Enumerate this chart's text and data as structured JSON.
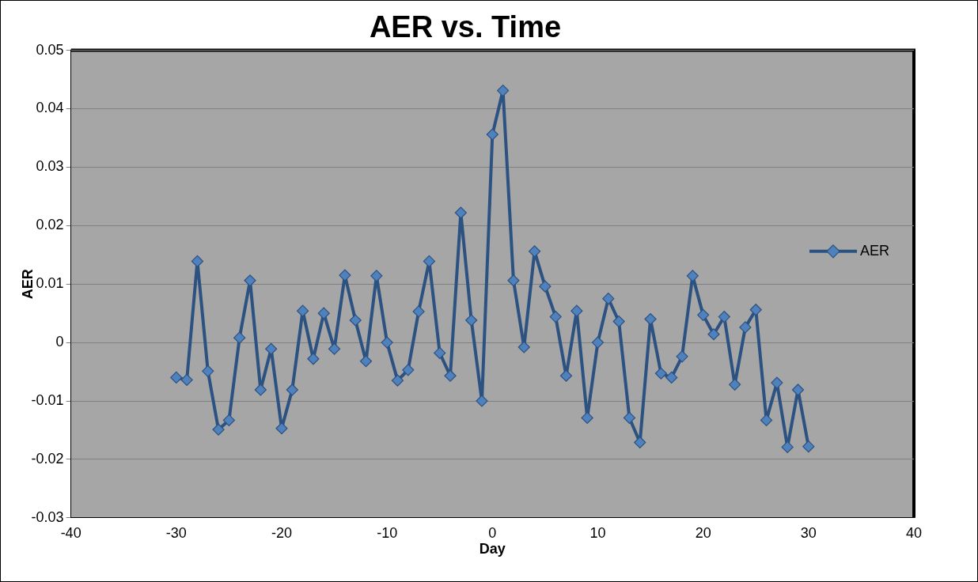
{
  "chart_data": {
    "type": "line",
    "title": "AER vs. Time",
    "xlabel": "Day",
    "ylabel": "AER",
    "x": [
      -30,
      -29,
      -28,
      -27,
      -26,
      -25,
      -24,
      -23,
      -22,
      -21,
      -20,
      -19,
      -18,
      -17,
      -16,
      -15,
      -14,
      -13,
      -12,
      -11,
      -10,
      -9,
      -8,
      -7,
      -6,
      -5,
      -4,
      -3,
      -2,
      -1,
      0,
      1,
      2,
      3,
      4,
      5,
      6,
      7,
      8,
      9,
      10,
      11,
      12,
      13,
      14,
      15,
      16,
      17,
      18,
      19,
      20,
      21,
      22,
      23,
      24,
      25,
      26,
      27,
      28,
      29,
      30
    ],
    "series": [
      {
        "name": "AER",
        "color": "#2c5282",
        "values": [
          -0.006,
          -0.0064,
          0.0139,
          -0.0049,
          -0.0149,
          -0.0133,
          0.0008,
          0.0106,
          -0.0081,
          -0.0011,
          -0.0147,
          -0.0081,
          0.0054,
          -0.0028,
          0.005,
          -0.0011,
          0.0115,
          0.0038,
          -0.0032,
          0.0114,
          0,
          -0.0065,
          -0.0047,
          0.0053,
          0.0139,
          -0.0018,
          -0.0057,
          0.0222,
          0.0038,
          -0.01,
          0.0356,
          0.0431,
          0.0106,
          -0.0008,
          0.0156,
          0.0096,
          0.0044,
          -0.0057,
          0.0054,
          -0.0129,
          0,
          0.0075,
          0.0036,
          -0.0129,
          -0.0171,
          0.004,
          -0.0053,
          -0.006,
          -0.0024,
          0.0114,
          0.0047,
          0.0014,
          0.0044,
          -0.0072,
          0.0026,
          0.0056,
          -0.0133,
          -0.0069,
          -0.0179,
          -0.0081,
          -0.0178
        ]
      }
    ],
    "xlim": [
      -40,
      40
    ],
    "xticks": [
      -40,
      -30,
      -20,
      -10,
      0,
      10,
      20,
      30,
      40
    ],
    "ylim": [
      -0.03,
      0.05
    ],
    "yticks": [
      -0.03,
      -0.02,
      -0.01,
      0,
      0.01,
      0.02,
      0.03,
      0.04,
      0.05
    ],
    "grid": "y",
    "legend": "right",
    "marker": "diamond",
    "line_style": "solid"
  }
}
